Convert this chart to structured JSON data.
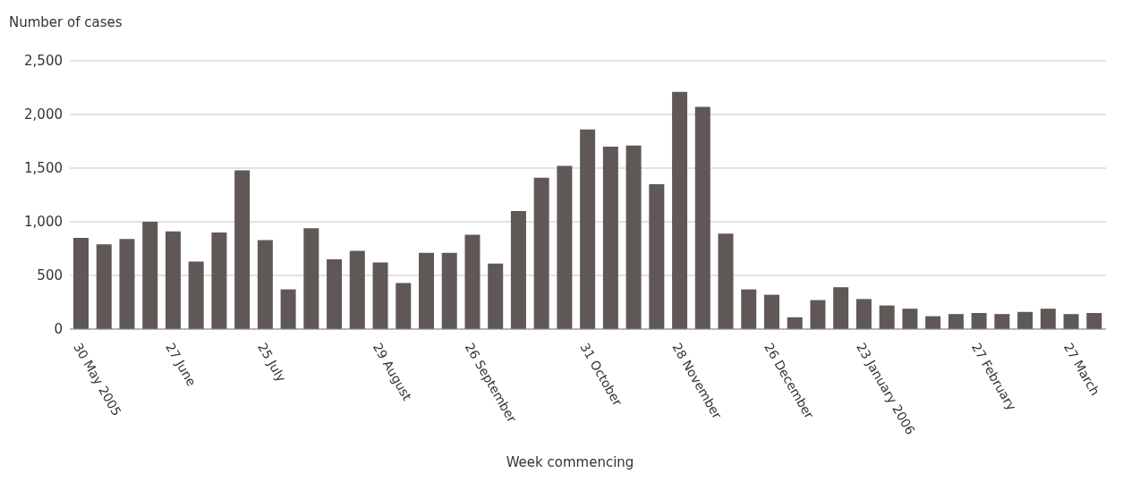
{
  "chart_data": {
    "type": "bar",
    "ylabel": "Number of cases",
    "xlabel": "Week commencing",
    "categories": [
      "30 May 2005",
      null,
      null,
      null,
      "27 June",
      null,
      null,
      null,
      "25 July",
      null,
      null,
      null,
      null,
      "29 August",
      null,
      null,
      null,
      "26 September",
      null,
      null,
      null,
      null,
      "31 October",
      null,
      null,
      null,
      "28 November",
      null,
      null,
      null,
      "26 December",
      null,
      null,
      null,
      "23 January 2006",
      null,
      null,
      null,
      null,
      "27 February",
      null,
      null,
      null,
      "27 March",
      null
    ],
    "values": [
      850,
      790,
      840,
      1000,
      910,
      630,
      900,
      1480,
      830,
      370,
      940,
      650,
      730,
      620,
      430,
      710,
      710,
      880,
      610,
      1100,
      1410,
      1520,
      1860,
      1700,
      1710,
      1350,
      2210,
      2070,
      890,
      370,
      320,
      110,
      270,
      390,
      280,
      220,
      190,
      120,
      140,
      150,
      140,
      160,
      190,
      140,
      150
    ],
    "color": "#5f5856",
    "ylim": [
      0,
      2500
    ],
    "yticks": [
      {
        "value": 0,
        "label": "0"
      },
      {
        "value": 500,
        "label": "500"
      },
      {
        "value": 1000,
        "label": "1,000"
      },
      {
        "value": 1500,
        "label": "1,500"
      },
      {
        "value": 2000,
        "label": "2,000"
      },
      {
        "value": 2500,
        "label": "2,500"
      }
    ],
    "grid": "y"
  }
}
